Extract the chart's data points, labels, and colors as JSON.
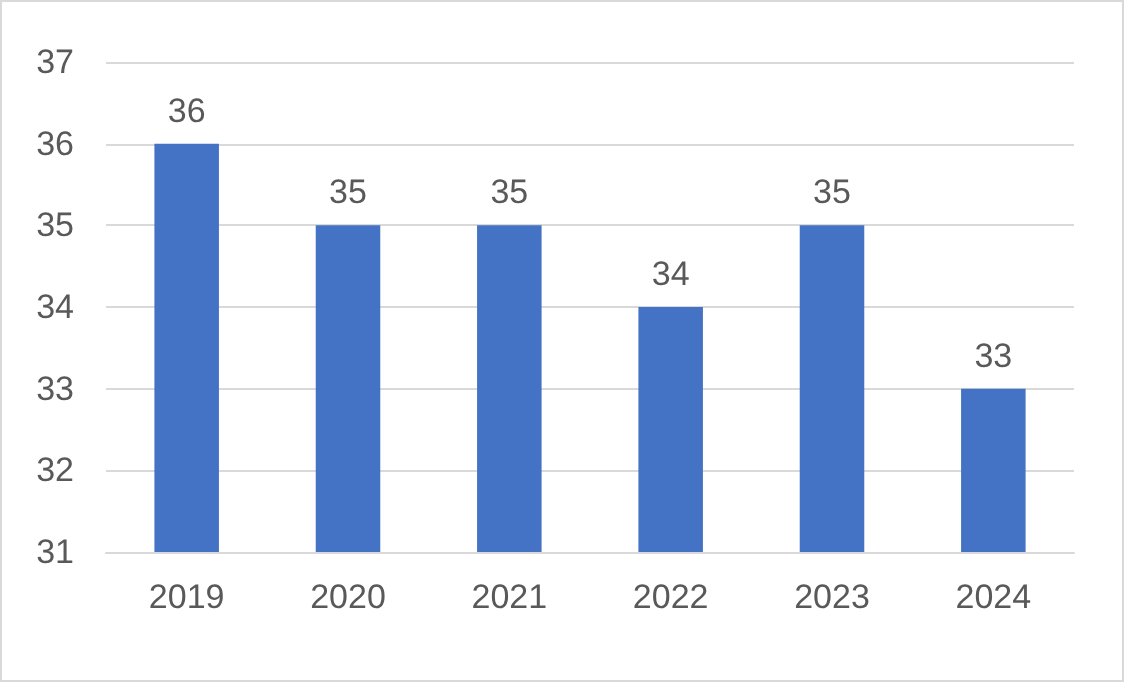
{
  "chart_data": {
    "type": "bar",
    "categories": [
      "2019",
      "2020",
      "2021",
      "2022",
      "2023",
      "2024"
    ],
    "values": [
      36,
      35,
      35,
      34,
      35,
      33
    ],
    "color": "#4472c4",
    "ylim": [
      31,
      37
    ],
    "yticks": [
      31,
      32,
      33,
      34,
      35,
      36,
      37
    ],
    "grid": "y",
    "data_labels": true
  }
}
